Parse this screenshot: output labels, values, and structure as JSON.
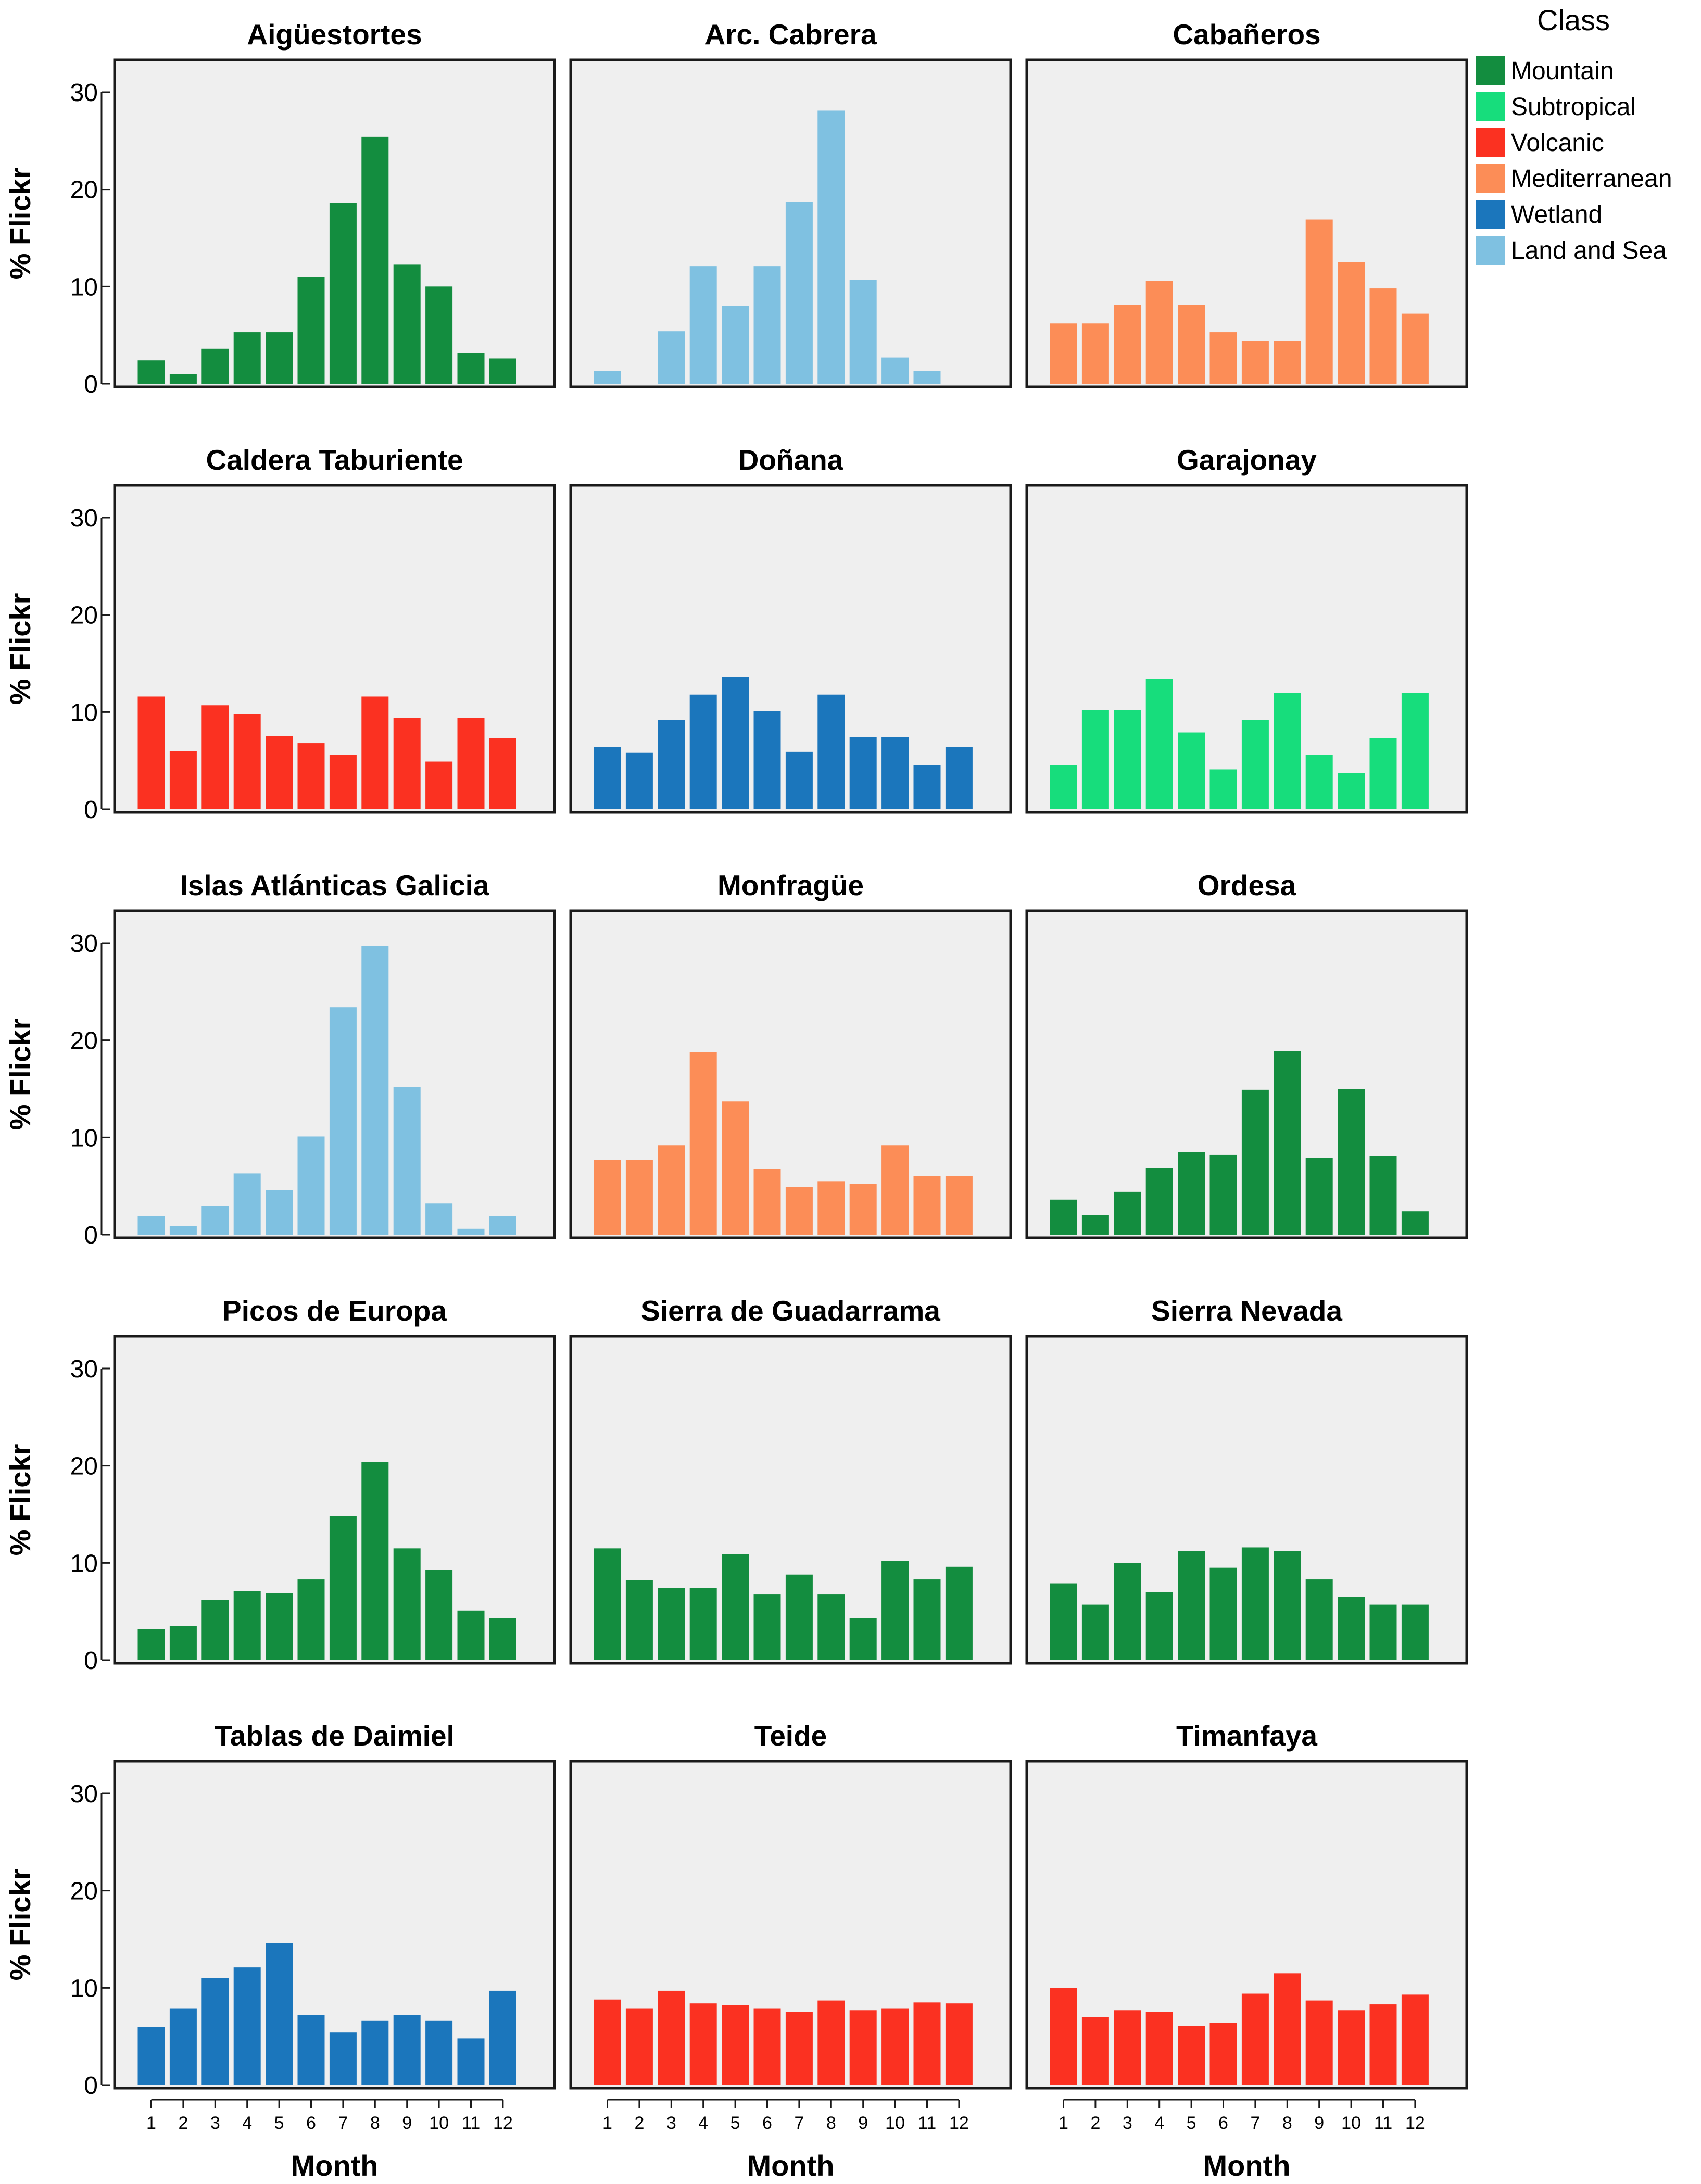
{
  "chart_data": {
    "type": "bar",
    "y_axis_title": "% Flickr",
    "x_axis_title": "Month",
    "categories": [
      "1",
      "2",
      "3",
      "4",
      "5",
      "6",
      "7",
      "8",
      "9",
      "10",
      "11",
      "12"
    ],
    "ylim": [
      0,
      33
    ],
    "y_ticks": [
      0,
      10,
      20,
      30
    ],
    "legend": {
      "title": "Class",
      "position": "top-right",
      "items": [
        {
          "name": "Mountain",
          "color": "#138d3f"
        },
        {
          "name": "Subtropical",
          "color": "#17dd7c"
        },
        {
          "name": "Volcanic",
          "color": "#fb3121"
        },
        {
          "name": "Mediterranean",
          "color": "#fc8d57"
        },
        {
          "name": "Wetland",
          "color": "#1b76bc"
        },
        {
          "name": "Land and Sea",
          "color": "#7fc1e1"
        }
      ]
    },
    "panels": [
      {
        "title": "Aigüestortes",
        "class": "Mountain",
        "values": [
          2.4,
          1.0,
          3.6,
          5.3,
          5.3,
          11.0,
          18.6,
          25.4,
          12.3,
          10.0,
          3.2,
          2.6
        ]
      },
      {
        "title": "Arc. Cabrera",
        "class": "Land and Sea",
        "values": [
          1.3,
          0,
          5.4,
          12.1,
          8.0,
          12.1,
          18.7,
          28.1,
          10.7,
          2.7,
          1.3,
          0
        ]
      },
      {
        "title": "Cabañeros",
        "class": "Mediterranean",
        "values": [
          6.2,
          6.2,
          8.1,
          10.6,
          8.1,
          5.3,
          4.4,
          4.4,
          16.9,
          12.5,
          9.8,
          7.2
        ]
      },
      {
        "title": "Caldera Taburiente",
        "class": "Volcanic",
        "values": [
          11.6,
          6.0,
          10.7,
          9.8,
          7.5,
          6.8,
          5.6,
          11.6,
          9.4,
          4.9,
          9.4,
          7.3
        ]
      },
      {
        "title": "Doñana",
        "class": "Wetland",
        "values": [
          6.4,
          5.8,
          9.2,
          11.8,
          13.6,
          10.1,
          5.9,
          11.8,
          7.4,
          7.4,
          4.5,
          6.4
        ]
      },
      {
        "title": "Garajonay",
        "class": "Subtropical",
        "values": [
          4.5,
          10.2,
          10.2,
          13.4,
          7.9,
          4.1,
          9.2,
          12.0,
          5.6,
          3.7,
          7.3,
          12.0
        ]
      },
      {
        "title": "Islas Atlánticas Galicia",
        "class": "Land and Sea",
        "values": [
          1.9,
          0.9,
          3.0,
          6.3,
          4.6,
          10.1,
          23.4,
          29.7,
          15.2,
          3.2,
          0.6,
          1.9
        ]
      },
      {
        "title": "Monfragüe",
        "class": "Mediterranean",
        "values": [
          7.7,
          7.7,
          9.2,
          18.8,
          13.7,
          6.8,
          4.9,
          5.5,
          5.2,
          9.2,
          6.0,
          6.0
        ]
      },
      {
        "title": "Ordesa",
        "class": "Mountain",
        "values": [
          3.6,
          2.0,
          4.4,
          6.9,
          8.5,
          8.2,
          14.9,
          18.9,
          7.9,
          15.0,
          8.1,
          2.4
        ]
      },
      {
        "title": "Picos de Europa",
        "class": "Mountain",
        "values": [
          3.2,
          3.5,
          6.2,
          7.1,
          6.9,
          8.3,
          14.8,
          20.4,
          11.5,
          9.3,
          5.1,
          4.3
        ]
      },
      {
        "title": "Sierra de Guadarrama",
        "class": "Mountain",
        "values": [
          11.5,
          8.2,
          7.4,
          7.4,
          10.9,
          6.8,
          8.8,
          6.8,
          4.3,
          10.2,
          8.3,
          9.6
        ]
      },
      {
        "title": "Sierra Nevada",
        "class": "Mountain",
        "values": [
          7.9,
          5.7,
          10.0,
          7.0,
          11.2,
          9.5,
          11.6,
          11.2,
          8.3,
          6.5,
          5.7,
          5.7
        ]
      },
      {
        "title": "Tablas de Daimiel",
        "class": "Wetland",
        "values": [
          6.0,
          7.9,
          11.0,
          12.1,
          14.6,
          7.2,
          5.4,
          6.6,
          7.2,
          6.6,
          4.8,
          9.7
        ]
      },
      {
        "title": "Teide",
        "class": "Volcanic",
        "values": [
          8.8,
          7.9,
          9.7,
          8.4,
          8.2,
          7.9,
          7.5,
          8.7,
          7.7,
          7.9,
          8.5,
          8.4
        ]
      },
      {
        "title": "Timanfaya",
        "class": "Volcanic",
        "values": [
          10.0,
          7.0,
          7.7,
          7.5,
          6.1,
          6.4,
          9.4,
          11.5,
          8.7,
          7.7,
          8.3,
          9.3
        ]
      }
    ]
  }
}
